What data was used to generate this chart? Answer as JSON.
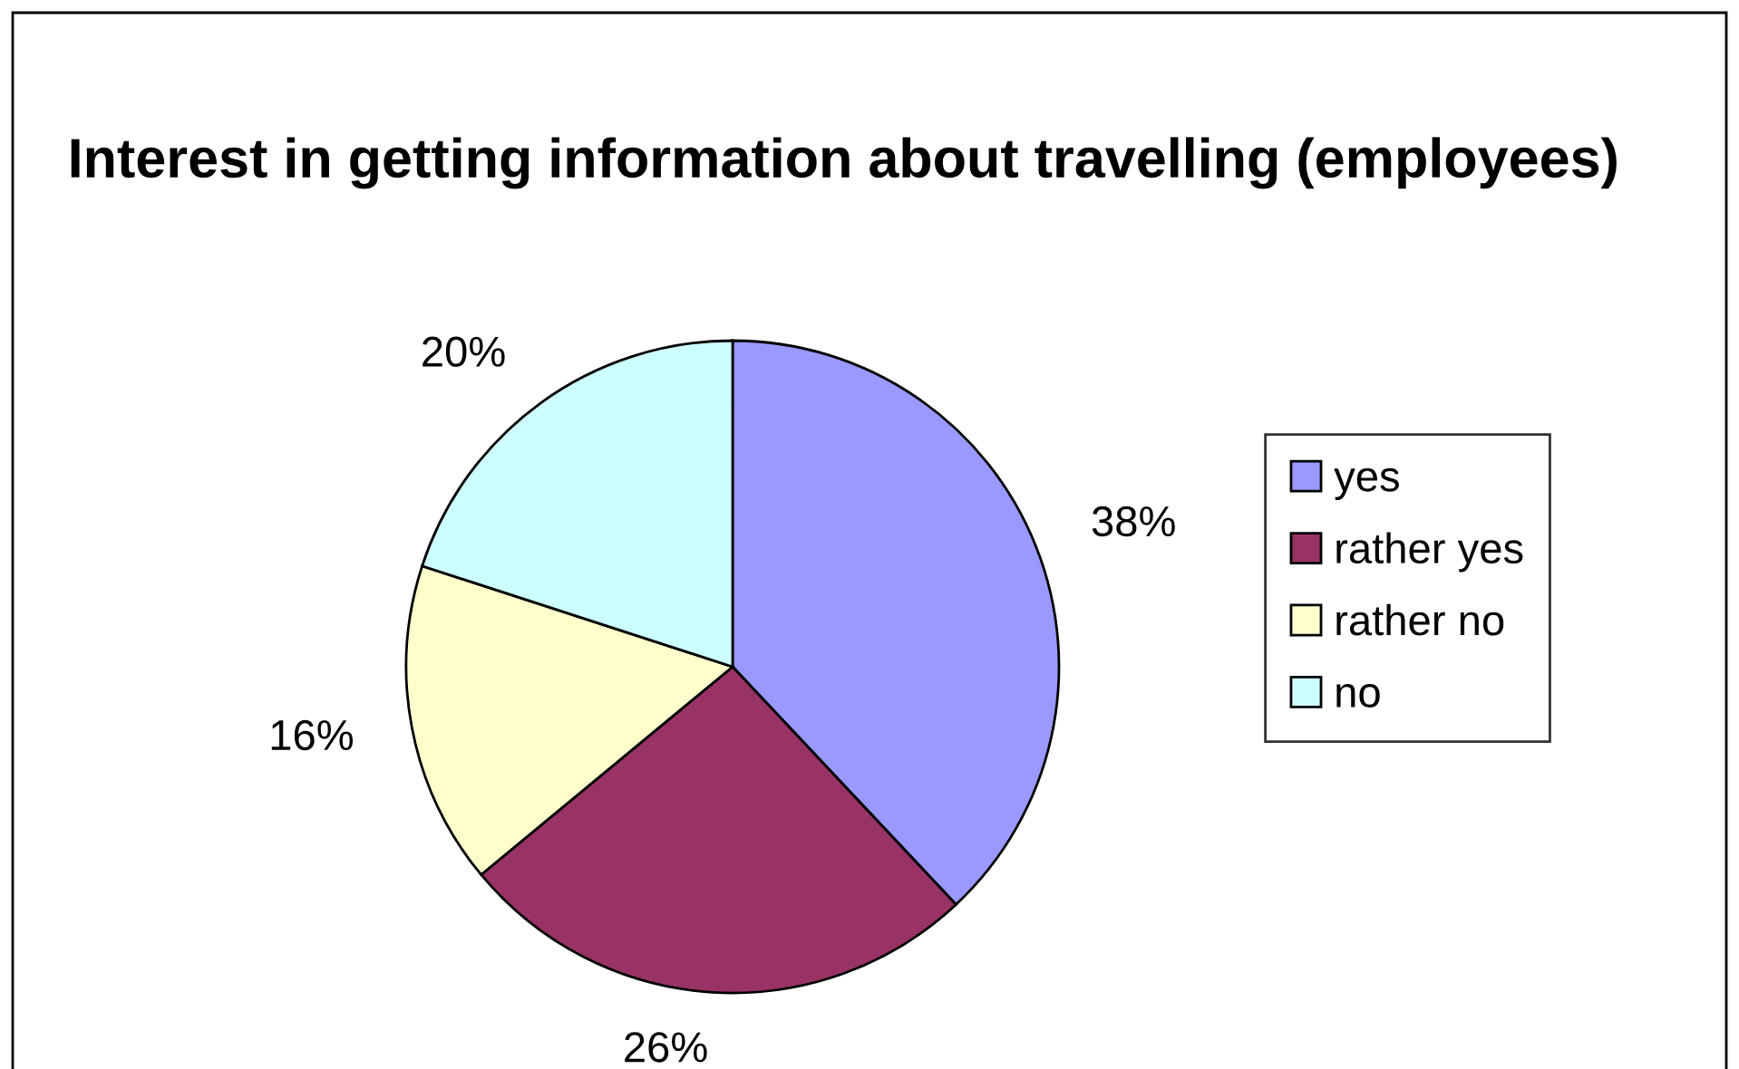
{
  "chart_data": {
    "type": "pie",
    "title": "Interest in getting information about travelling (employees)",
    "categories": [
      "yes",
      "rather yes",
      "rather no",
      "no"
    ],
    "values": [
      38,
      26,
      16,
      20
    ],
    "colors": [
      "#9999ff",
      "#993366",
      "#ffffcc",
      "#ccffff"
    ],
    "value_labels": [
      "38%",
      "26%",
      "16%",
      "20%"
    ],
    "legend": "right"
  }
}
